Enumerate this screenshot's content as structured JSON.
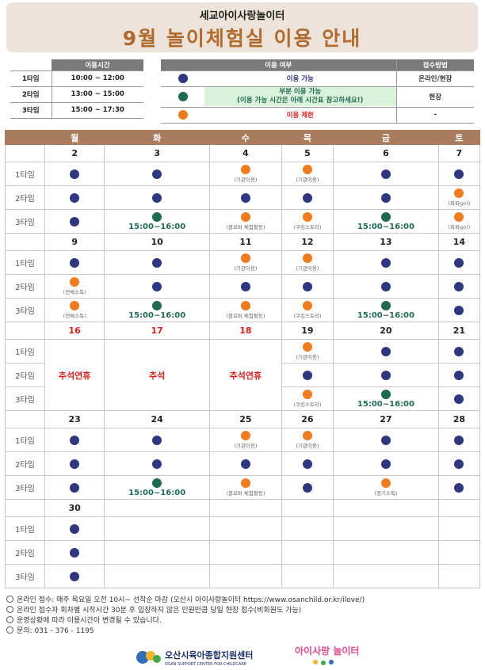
{
  "header": {
    "subtitle": "세교아이사랑놀이터",
    "title": "9월 놀이체험실 이용 안내"
  },
  "time_table": {
    "header": "이용시간",
    "rows": [
      {
        "label": "1타임",
        "time": "10:00 ~ 12:00"
      },
      {
        "label": "2타임",
        "time": "13:00 ~ 15:00"
      },
      {
        "label": "3타임",
        "time": "15:00 ~ 17:30"
      }
    ]
  },
  "legend": {
    "col_usage": "이용 여부",
    "col_method": "접수방법",
    "available": {
      "label": "이용 가능",
      "method": "온라인/현장",
      "color": "#2e3780"
    },
    "partial": {
      "label": "부분 이용 가능",
      "sub": "(이용 가능 시간은 아래 시간표 참고하세요!)",
      "method": "현장",
      "color": "#1f6b52"
    },
    "limited": {
      "label": "이용 제한",
      "method": "-",
      "color": "#f07c1e"
    }
  },
  "calendar": {
    "days": [
      "월",
      "화",
      "수",
      "목",
      "금",
      "토"
    ],
    "slot_labels": [
      "1타임",
      "2타임",
      "3타임"
    ],
    "weeks": [
      {
        "dates": [
          "2",
          "3",
          "4",
          "5",
          "6",
          "7"
        ],
        "red": false,
        "slots": [
          [
            {
              "c": "navy"
            },
            {
              "c": "navy"
            },
            {
              "c": "orange",
              "note": "(기관이용)"
            },
            {
              "c": "orange",
              "note": "(기관이용)"
            },
            {
              "c": "navy"
            },
            {
              "c": "navy"
            }
          ],
          [
            {
              "c": "navy"
            },
            {
              "c": "navy"
            },
            {
              "c": "navy"
            },
            {
              "c": "navy"
            },
            {
              "c": "navy"
            },
            {
              "c": "orange",
              "note": "(파파go!)"
            }
          ],
          [
            {
              "c": "navy"
            },
            {
              "c": "green",
              "time": "15:00~16:00"
            },
            {
              "c": "orange",
              "note": "(클로버 체험활동)"
            },
            {
              "c": "orange",
              "note": "(쿠킹스토리)"
            },
            {
              "c": "green",
              "time": "15:00~16:00"
            },
            {
              "c": "orange",
              "note": "(파파go!)"
            }
          ]
        ]
      },
      {
        "dates": [
          "9",
          "10",
          "11",
          "12",
          "13",
          "14"
        ],
        "red": false,
        "slots": [
          [
            {
              "c": "navy"
            },
            {
              "c": "navy"
            },
            {
              "c": "orange",
              "note": "(기관이용)"
            },
            {
              "c": "orange",
              "note": "(기관이용)"
            },
            {
              "c": "navy"
            },
            {
              "c": "navy"
            }
          ],
          [
            {
              "c": "orange",
              "note": "(전체소독)"
            },
            {
              "c": "navy"
            },
            {
              "c": "navy"
            },
            {
              "c": "navy"
            },
            {
              "c": "navy"
            },
            {
              "c": "navy"
            }
          ],
          [
            {
              "c": "orange",
              "note": "(전체소독)"
            },
            {
              "c": "green",
              "time": "15:00~16:00"
            },
            {
              "c": "orange",
              "note": "(클로버 체험활동)"
            },
            {
              "c": "orange",
              "note": "(쿠킹스토리)"
            },
            {
              "c": "green",
              "time": "15:00~16:00"
            },
            {
              "c": "navy"
            }
          ]
        ]
      },
      {
        "dates": [
          "16",
          "17",
          "18",
          "19",
          "20",
          "21"
        ],
        "red_cols": [
          0,
          1,
          2
        ],
        "holidays": [
          "추석연휴",
          "추석",
          "추석연휴"
        ],
        "slots": [
          [
            {
              "c": ""
            },
            {
              "c": ""
            },
            {
              "c": ""
            },
            {
              "c": "orange",
              "note": "(기관이용)"
            },
            {
              "c": "navy"
            },
            {
              "c": "navy"
            }
          ],
          [
            {
              "c": ""
            },
            {
              "c": ""
            },
            {
              "c": ""
            },
            {
              "c": "navy"
            },
            {
              "c": "navy"
            },
            {
              "c": "navy"
            }
          ],
          [
            {
              "c": ""
            },
            {
              "c": ""
            },
            {
              "c": ""
            },
            {
              "c": "orange",
              "note": "(쿠킹스토리)"
            },
            {
              "c": "green",
              "time": "15:00~16:00"
            },
            {
              "c": "navy"
            }
          ]
        ]
      },
      {
        "dates": [
          "23",
          "24",
          "25",
          "26",
          "27",
          "28"
        ],
        "red": false,
        "slots": [
          [
            {
              "c": "navy"
            },
            {
              "c": "navy"
            },
            {
              "c": "orange",
              "note": "(기관이용)"
            },
            {
              "c": "orange",
              "note": "(기관이용)"
            },
            {
              "c": "navy"
            },
            {
              "c": "navy"
            }
          ],
          [
            {
              "c": "navy"
            },
            {
              "c": "navy"
            },
            {
              "c": "navy"
            },
            {
              "c": "navy"
            },
            {
              "c": "navy"
            },
            {
              "c": "navy"
            }
          ],
          [
            {
              "c": "navy"
            },
            {
              "c": "green",
              "time": "15:00~16:00"
            },
            {
              "c": "orange",
              "note": "(클로버 체험활동)"
            },
            {
              "c": "navy"
            },
            {
              "c": "orange",
              "note": "(정기소독)"
            },
            {
              "c": "navy"
            }
          ]
        ]
      },
      {
        "dates": [
          "30",
          "",
          "",
          "",
          "",
          ""
        ],
        "red": false,
        "slots": [
          [
            {
              "c": "navy"
            },
            {
              "c": ""
            },
            {
              "c": ""
            },
            {
              "c": ""
            },
            {
              "c": ""
            },
            {
              "c": ""
            }
          ],
          [
            {
              "c": "navy"
            },
            {
              "c": ""
            },
            {
              "c": ""
            },
            {
              "c": ""
            },
            {
              "c": ""
            },
            {
              "c": ""
            }
          ],
          [
            {
              "c": "navy"
            },
            {
              "c": ""
            },
            {
              "c": ""
            },
            {
              "c": ""
            },
            {
              "c": ""
            },
            {
              "c": ""
            }
          ]
        ]
      }
    ]
  },
  "footer": {
    "lines": [
      "온라인 접수: 매주 목요일 오전 10시~ 선착순 마감 (오산시 아이사랑놀이터 https://www.osanchild.or.kr/ilove/)",
      "온라인 접수자 회차별 시작시간 30분 후 입장하지 않은 인원만큼 당일 현장 접수(비회원도 가능)",
      "운영상황에 따라 이용시간이 변경될 수 있습니다.",
      "문의: 031 - 376 - 1195"
    ],
    "logo_left": "오산시육아종합지원센터",
    "logo_left_en": "OSAN SUPPORT CENTER FOR CHILDCARE",
    "logo_right": "아이사랑 놀이터"
  }
}
